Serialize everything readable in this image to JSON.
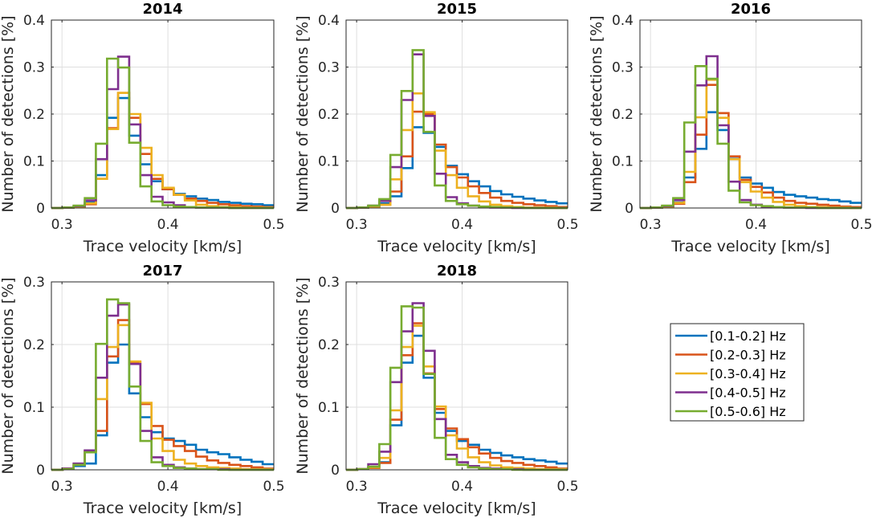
{
  "chart_data": {
    "type": "step-histogram",
    "bin_edges": [
      0.29,
      0.3005,
      0.311,
      0.3215,
      0.332,
      0.3425,
      0.353,
      0.3635,
      0.374,
      0.3845,
      0.395,
      0.4055,
      0.416,
      0.4265,
      0.437,
      0.4475,
      0.458,
      0.4685,
      0.479,
      0.4895,
      0.5
    ],
    "legend": {
      "placement": "right-middle",
      "entries": [
        {
          "name": "[0.1-0.2] Hz",
          "color": "#0072BD"
        },
        {
          "name": "[0.2-0.3] Hz",
          "color": "#D95319"
        },
        {
          "name": "[0.3-0.4] Hz",
          "color": "#EDB120"
        },
        {
          "name": "[0.4-0.5] Hz",
          "color": "#7E2F8E"
        },
        {
          "name": "[0.5-0.6] Hz",
          "color": "#77AC30"
        }
      ]
    },
    "panels": [
      {
        "title": "2014",
        "xlabel": "Trace velocity [km/s]",
        "ylabel": "Number of detections [%]",
        "xlim": [
          0.29,
          0.5
        ],
        "ylim": [
          0,
          0.4
        ],
        "xticks": [
          "0.3",
          "0.4",
          "0.5"
        ],
        "xtick_values": [
          0.3,
          0.4,
          0.5
        ],
        "yticks": [
          "0",
          "0.1",
          "0.2",
          "0.3",
          "0.4"
        ],
        "ytick_values": [
          0,
          0.1,
          0.2,
          0.3,
          0.4
        ],
        "grid": true,
        "series": [
          {
            "name": "[0.1-0.2] Hz",
            "values": [
              0,
              0.001,
              0.003,
              0.012,
              0.07,
              0.192,
              0.234,
              0.154,
              0.093,
              0.057,
              0.04,
              0.03,
              0.025,
              0.02,
              0.017,
              0.013,
              0.011,
              0.009,
              0.008,
              0.006
            ]
          },
          {
            "name": "[0.2-0.3] Hz",
            "values": [
              0,
              0.001,
              0.002,
              0.008,
              0.062,
              0.17,
              0.245,
              0.192,
              0.115,
              0.062,
              0.04,
              0.028,
              0.02,
              0.015,
              0.011,
              0.008,
              0.006,
              0.004,
              0.003,
              0.002
            ]
          },
          {
            "name": "[0.3-0.4] Hz",
            "values": [
              0,
              0.001,
              0.003,
              0.01,
              0.062,
              0.168,
              0.245,
              0.2,
              0.128,
              0.07,
              0.043,
              0.028,
              0.016,
              0.007,
              0.004,
              0.002,
              0.002,
              0.001,
              0.001,
              0.001
            ]
          },
          {
            "name": "[0.4-0.5] Hz",
            "values": [
              0,
              0.001,
              0.004,
              0.016,
              0.104,
              0.253,
              0.322,
              0.178,
              0.07,
              0.024,
              0.012,
              0.006,
              0.002,
              0.001,
              0.001,
              0.001,
              0.0,
              0.0,
              0.0,
              0.0
            ]
          },
          {
            "name": "[0.5-0.6] Hz",
            "values": [
              0,
              0.001,
              0.005,
              0.021,
              0.137,
              0.318,
              0.299,
              0.139,
              0.046,
              0.014,
              0.006,
              0.003,
              0.002,
              0.001,
              0.001,
              0.001,
              0.0,
              0.0,
              0.0,
              0.0
            ]
          }
        ]
      },
      {
        "title": "2015",
        "xlabel": "Trace velocity [km/s]",
        "ylabel": "Number of detections [%]",
        "xlim": [
          0.29,
          0.5
        ],
        "ylim": [
          0,
          0.4
        ],
        "xticks": [
          "0.3",
          "0.4",
          "0.5"
        ],
        "xtick_values": [
          0.3,
          0.4,
          0.5
        ],
        "yticks": [
          "0",
          "0.1",
          "0.2",
          "0.3",
          "0.4"
        ],
        "ytick_values": [
          0,
          0.1,
          0.2,
          0.3,
          0.4
        ],
        "grid": true,
        "series": [
          {
            "name": "[0.1-0.2] Hz",
            "values": [
              0,
              0.001,
              0.004,
              0.01,
              0.025,
              0.085,
              0.172,
              0.16,
              0.13,
              0.09,
              0.072,
              0.057,
              0.046,
              0.036,
              0.029,
              0.024,
              0.02,
              0.016,
              0.013,
              0.01
            ]
          },
          {
            "name": "[0.2-0.3] Hz",
            "values": [
              0,
              0.001,
              0.003,
              0.007,
              0.035,
              0.11,
              0.205,
              0.2,
              0.135,
              0.087,
              0.065,
              0.046,
              0.032,
              0.022,
              0.015,
              0.011,
              0.008,
              0.006,
              0.004,
              0.002
            ]
          },
          {
            "name": "[0.3-0.4] Hz",
            "values": [
              0,
              0.001,
              0.003,
              0.007,
              0.061,
              0.166,
              0.244,
              0.204,
              0.122,
              0.07,
              0.043,
              0.025,
              0.014,
              0.007,
              0.004,
              0.002,
              0.001,
              0.001,
              0.001,
              0.0
            ]
          },
          {
            "name": "[0.4-0.5] Hz",
            "values": [
              0,
              0.001,
              0.005,
              0.015,
              0.087,
              0.23,
              0.327,
              0.196,
              0.073,
              0.023,
              0.01,
              0.005,
              0.002,
              0.001,
              0.001,
              0.0,
              0.0,
              0.0,
              0.0,
              0.0
            ]
          },
          {
            "name": "[0.5-0.6] Hz",
            "values": [
              0,
              0.001,
              0.005,
              0.019,
              0.113,
              0.249,
              0.336,
              0.162,
              0.048,
              0.015,
              0.008,
              0.005,
              0.003,
              0.002,
              0.001,
              0.001,
              0.0,
              0.0,
              0.0,
              0.0
            ]
          }
        ]
      },
      {
        "title": "2016",
        "xlabel": "Trace velocity [km/s]",
        "ylabel": "Number of detections [%]",
        "xlim": [
          0.29,
          0.5
        ],
        "ylim": [
          0,
          0.4
        ],
        "xticks": [
          "0.3",
          "0.4",
          "0.5"
        ],
        "xtick_values": [
          0.3,
          0.4,
          0.5
        ],
        "yticks": [
          "0",
          "0.1",
          "0.2",
          "0.3",
          "0.4"
        ],
        "ytick_values": [
          0,
          0.1,
          0.2,
          0.3,
          0.4
        ],
        "grid": true,
        "series": [
          {
            "name": "[0.1-0.2] Hz",
            "values": [
              0,
              0.001,
              0.003,
              0.012,
              0.065,
              0.126,
              0.204,
              0.166,
              0.109,
              0.065,
              0.052,
              0.043,
              0.034,
              0.028,
              0.025,
              0.022,
              0.019,
              0.017,
              0.014,
              0.011
            ]
          },
          {
            "name": "[0.2-0.3] Hz",
            "values": [
              0,
              0.001,
              0.002,
              0.009,
              0.055,
              0.156,
              0.262,
              0.202,
              0.11,
              0.06,
              0.045,
              0.033,
              0.022,
              0.015,
              0.011,
              0.009,
              0.007,
              0.005,
              0.003,
              0.002
            ]
          },
          {
            "name": "[0.3-0.4] Hz",
            "values": [
              0,
              0.001,
              0.003,
              0.011,
              0.077,
              0.193,
              0.273,
              0.192,
              0.104,
              0.055,
              0.035,
              0.022,
              0.013,
              0.007,
              0.004,
              0.002,
              0.002,
              0.001,
              0.001,
              0.0
            ]
          },
          {
            "name": "[0.4-0.5] Hz",
            "values": [
              0,
              0.001,
              0.004,
              0.017,
              0.12,
              0.261,
              0.323,
              0.176,
              0.056,
              0.017,
              0.007,
              0.003,
              0.002,
              0.001,
              0.001,
              0.0,
              0.0,
              0.0,
              0.0,
              0.0
            ]
          },
          {
            "name": "[0.5-0.6] Hz",
            "values": [
              0,
              0.001,
              0.005,
              0.021,
              0.182,
              0.302,
              0.275,
              0.137,
              0.037,
              0.012,
              0.006,
              0.004,
              0.002,
              0.001,
              0.001,
              0.001,
              0.0,
              0.0,
              0.0,
              0.0
            ]
          }
        ]
      },
      {
        "title": "2017",
        "xlabel": "Trace velocity [km/s]",
        "ylabel": "Number of detections [%]",
        "xlim": [
          0.29,
          0.5
        ],
        "ylim": [
          0,
          0.3
        ],
        "xticks": [
          "0.3",
          "0.4",
          "0.5"
        ],
        "xtick_values": [
          0.3,
          0.4,
          0.5
        ],
        "yticks": [
          "0",
          "0.1",
          "0.2",
          "0.3"
        ],
        "ytick_values": [
          0,
          0.1,
          0.2,
          0.3
        ],
        "grid": true,
        "series": [
          {
            "name": "[0.1-0.2] Hz",
            "values": [
              0,
              0.002,
              0.006,
              0.01,
              0.055,
              0.171,
              0.2,
              0.122,
              0.084,
              0.06,
              0.05,
              0.046,
              0.04,
              0.032,
              0.028,
              0.025,
              0.02,
              0.016,
              0.013,
              0.009
            ]
          },
          {
            "name": "[0.2-0.3] Hz",
            "values": [
              0,
              0.002,
              0.008,
              0.03,
              0.062,
              0.181,
              0.239,
              0.172,
              0.105,
              0.07,
              0.048,
              0.038,
              0.03,
              0.021,
              0.015,
              0.011,
              0.008,
              0.006,
              0.004,
              0.002
            ]
          },
          {
            "name": "[0.3-0.4] Hz",
            "values": [
              0,
              0.002,
              0.009,
              0.029,
              0.113,
              0.196,
              0.231,
              0.173,
              0.107,
              0.05,
              0.03,
              0.016,
              0.01,
              0.006,
              0.004,
              0.003,
              0.002,
              0.001,
              0.001,
              0.001
            ]
          },
          {
            "name": "[0.4-0.5] Hz",
            "values": [
              0,
              0.002,
              0.01,
              0.031,
              0.147,
              0.246,
              0.264,
              0.169,
              0.062,
              0.02,
              0.008,
              0.004,
              0.002,
              0.001,
              0.001,
              0.001,
              0.0,
              0.0,
              0.0,
              0.0
            ]
          },
          {
            "name": "[0.5-0.6] Hz",
            "values": [
              0,
              0.001,
              0.008,
              0.028,
              0.201,
              0.272,
              0.266,
              0.133,
              0.046,
              0.012,
              0.006,
              0.003,
              0.002,
              0.001,
              0.001,
              0.0,
              0.0,
              0.0,
              0.0,
              0.0
            ]
          }
        ]
      },
      {
        "title": "2018",
        "xlabel": "Trace velocity [km/s]",
        "ylabel": "Number of detections [%]",
        "xlim": [
          0.29,
          0.5
        ],
        "ylim": [
          0,
          0.3
        ],
        "xticks": [
          "0.3",
          "0.4",
          "0.5"
        ],
        "xtick_values": [
          0.3,
          0.4,
          0.5
        ],
        "yticks": [
          "0",
          "0.1",
          "0.2",
          "0.3"
        ],
        "ytick_values": [
          0,
          0.1,
          0.2,
          0.3
        ],
        "grid": true,
        "series": [
          {
            "name": "[0.1-0.2] Hz",
            "values": [
              0,
              0.001,
              0.004,
              0.012,
              0.071,
              0.171,
              0.214,
              0.147,
              0.091,
              0.062,
              0.046,
              0.04,
              0.032,
              0.027,
              0.023,
              0.02,
              0.017,
              0.015,
              0.013,
              0.01
            ]
          },
          {
            "name": "[0.2-0.3] Hz",
            "values": [
              0,
              0.001,
              0.003,
              0.011,
              0.08,
              0.183,
              0.234,
              0.154,
              0.097,
              0.066,
              0.049,
              0.036,
              0.026,
              0.019,
              0.014,
              0.011,
              0.008,
              0.006,
              0.004,
              0.002
            ]
          },
          {
            "name": "[0.3-0.4] Hz",
            "values": [
              0,
              0.001,
              0.004,
              0.019,
              0.095,
              0.196,
              0.23,
              0.165,
              0.101,
              0.055,
              0.034,
              0.02,
              0.012,
              0.007,
              0.004,
              0.003,
              0.002,
              0.001,
              0.001,
              0.001
            ]
          },
          {
            "name": "[0.4-0.5] Hz",
            "values": [
              0,
              0.001,
              0.009,
              0.029,
              0.14,
              0.221,
              0.266,
              0.19,
              0.081,
              0.024,
              0.012,
              0.006,
              0.003,
              0.002,
              0.001,
              0.001,
              0.0,
              0.0,
              0.0,
              0.0
            ]
          },
          {
            "name": "[0.5-0.6] Hz",
            "values": [
              0,
              0.001,
              0.005,
              0.041,
              0.163,
              0.261,
              0.259,
              0.153,
              0.051,
              0.017,
              0.008,
              0.004,
              0.002,
              0.001,
              0.001,
              0.0,
              0.0,
              0.0,
              0.0,
              0.0
            ]
          }
        ]
      }
    ]
  }
}
